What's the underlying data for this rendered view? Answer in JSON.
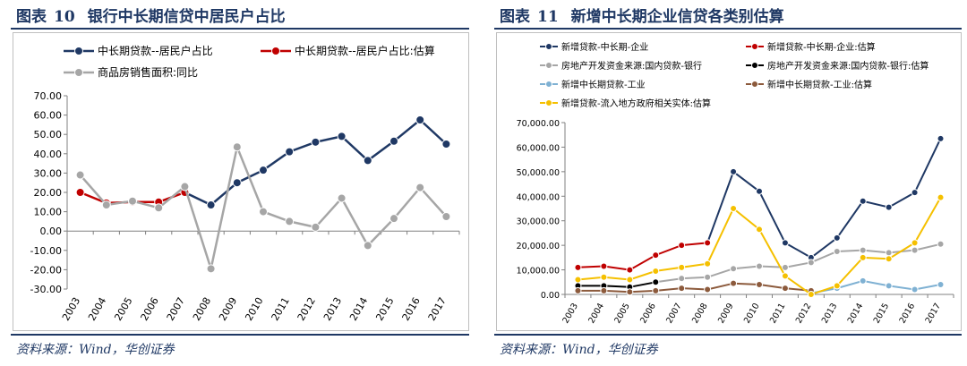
{
  "left": {
    "figure_label": "图表",
    "figure_number": "10",
    "title": "银行中长期信贷中居民户占比",
    "source": "资料来源：Wind，华创证券",
    "chart_data": {
      "type": "line",
      "categories": [
        "2003",
        "2004",
        "2005",
        "2006",
        "2007",
        "2008",
        "2009",
        "2010",
        "2011",
        "2012",
        "2013",
        "2014",
        "2015",
        "2016",
        "2017"
      ],
      "ylim": [
        -30,
        70
      ],
      "yticks": [
        "70.00",
        "60.00",
        "50.00",
        "40.00",
        "30.00",
        "20.00",
        "10.00",
        "0.00",
        "-10.00",
        "-20.00",
        "-30.00"
      ],
      "legend_position": "top",
      "grid": false,
      "series": [
        {
          "name": "中长期贷款--居民户占比",
          "color": "#1f3864",
          "values": [
            null,
            null,
            null,
            null,
            20,
            13.5,
            25,
            31.5,
            41,
            46,
            49,
            36.5,
            46.5,
            57.5,
            45
          ]
        },
        {
          "name": "中长期贷款--居民户占比:估算",
          "color": "#c00000",
          "values": [
            20,
            14.5,
            15,
            15,
            20,
            null,
            null,
            null,
            null,
            null,
            null,
            null,
            null,
            null,
            null
          ]
        },
        {
          "name": "商品房销售面积:同比",
          "color": "#a6a6a6",
          "values": [
            29,
            13.5,
            15.5,
            12,
            23,
            -19.5,
            43.5,
            10,
            5,
            2,
            17,
            -7.5,
            6.5,
            22.5,
            7.5
          ]
        }
      ]
    }
  },
  "right": {
    "figure_label": "图表",
    "figure_number": "11",
    "title": "新增中长期企业信贷各类别估算",
    "source": "资料来源：Wind，华创证券",
    "chart_data": {
      "type": "line",
      "categories": [
        "2003",
        "2004",
        "2005",
        "2006",
        "2007",
        "2008",
        "2009",
        "2010",
        "2011",
        "2012",
        "2013",
        "2014",
        "2015",
        "2016",
        "2017"
      ],
      "ylim": [
        0,
        70000
      ],
      "yticks": [
        "70,000.00",
        "60,000.00",
        "50,000.00",
        "40,000.00",
        "30,000.00",
        "20,000.00",
        "10,000.00",
        "0.00"
      ],
      "legend_position": "top",
      "grid": false,
      "series": [
        {
          "name": "新增贷款-中长期-企业",
          "color": "#1f3864",
          "values": [
            null,
            null,
            null,
            null,
            null,
            21000,
            50000,
            42000,
            21000,
            15000,
            23000,
            38000,
            35500,
            41500,
            63500
          ]
        },
        {
          "name": "新增贷款-中长期-企业:估算",
          "color": "#c00000",
          "values": [
            11000,
            11500,
            10000,
            16000,
            20000,
            21000,
            null,
            null,
            null,
            null,
            null,
            null,
            null,
            null,
            null
          ]
        },
        {
          "name": "房地产开发资金来源:国内贷款-银行",
          "color": "#a6a6a6",
          "values": [
            null,
            null,
            null,
            5000,
            6500,
            7000,
            10500,
            11500,
            11000,
            13000,
            17500,
            18000,
            17000,
            18000,
            20500
          ]
        },
        {
          "name": "房地产开发资金来源:国内贷款-银行:估算",
          "color": "#000000",
          "values": [
            3500,
            3500,
            3000,
            5000,
            null,
            null,
            null,
            null,
            null,
            null,
            null,
            null,
            null,
            null,
            null
          ]
        },
        {
          "name": "新增中长期贷款-工业",
          "color": "#7fb1d3",
          "values": [
            null,
            null,
            null,
            null,
            null,
            null,
            null,
            null,
            null,
            500,
            2500,
            5500,
            3500,
            2000,
            4000
          ]
        },
        {
          "name": "新增中长期贷款-工业:估算",
          "color": "#8c5a3c",
          "values": [
            1500,
            1500,
            1000,
            1500,
            2500,
            2000,
            4500,
            4000,
            2500,
            1500,
            null,
            null,
            null,
            null,
            null
          ]
        },
        {
          "name": "新增贷款-流入地方政府相关实体:估算",
          "color": "#f5c000",
          "values": [
            6000,
            7000,
            6000,
            9500,
            11000,
            12500,
            35000,
            26500,
            7500,
            0,
            3500,
            15000,
            14500,
            21000,
            39500
          ]
        }
      ]
    }
  }
}
